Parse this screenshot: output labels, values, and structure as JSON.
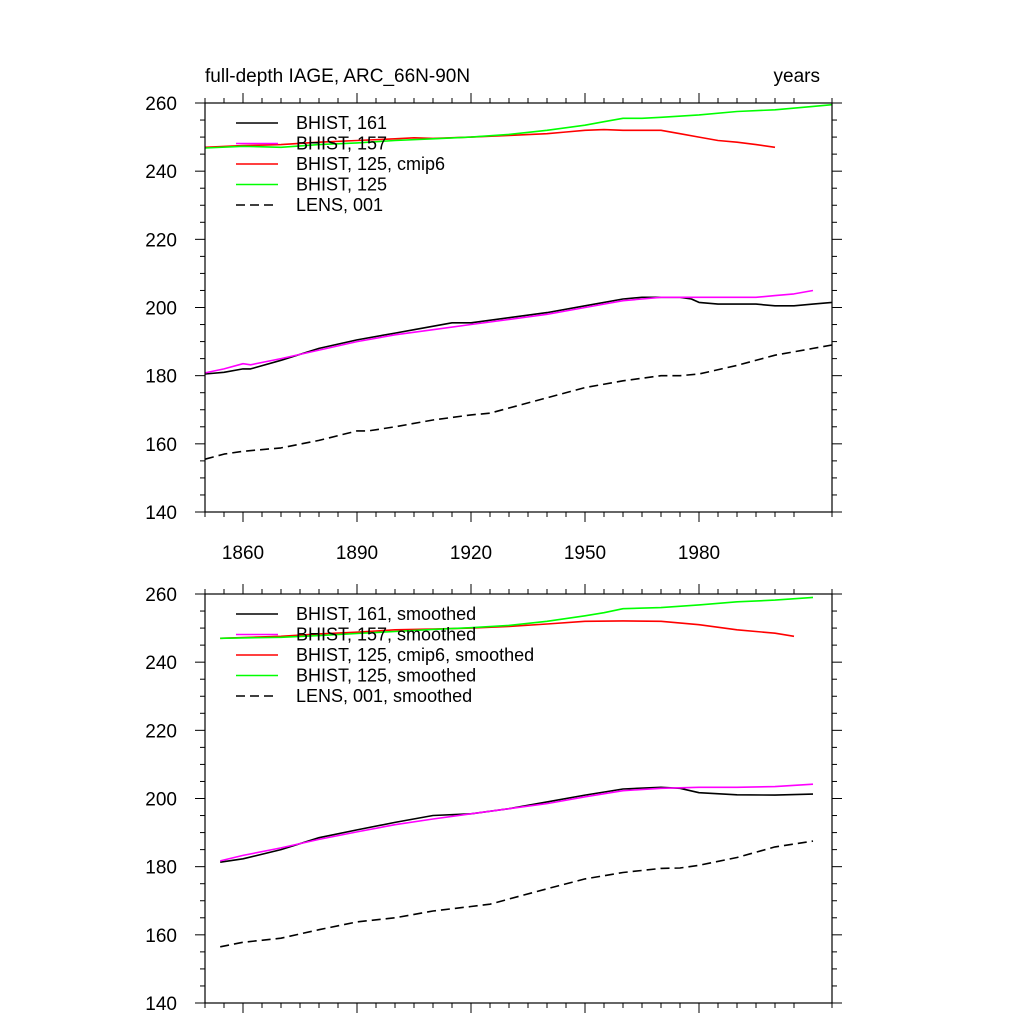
{
  "title_left": "full-depth IAGE, ARC_66N-90N",
  "title_right": "years",
  "chart_data": [
    {
      "type": "line",
      "panel": "top",
      "xlim": [
        1850,
        2015
      ],
      "ylim": [
        140,
        260
      ],
      "x_ticks": [
        1860,
        1890,
        1920,
        1950,
        1980
      ],
      "y_ticks": [
        140,
        160,
        180,
        200,
        220,
        240,
        260
      ],
      "x_tick_labels_shown": true,
      "legend": [
        "BHIST, 161",
        "BHIST, 157",
        "BHIST, 125, cmip6",
        "BHIST, 125",
        "LENS, 001"
      ],
      "legend_position": "top-left",
      "series": [
        {
          "name": "BHIST, 161",
          "color": "#000000",
          "dash": "solid",
          "x": [
            1850,
            1855,
            1860,
            1862,
            1870,
            1880,
            1890,
            1900,
            1905,
            1915,
            1920,
            1930,
            1940,
            1950,
            1960,
            1965,
            1970,
            1975,
            1978,
            1980,
            1985,
            1990,
            1995,
            2000,
            2005,
            2010,
            2015
          ],
          "y": [
            180.5,
            181,
            182,
            182,
            184.5,
            188,
            190.5,
            192.5,
            193.5,
            195.5,
            195.5,
            197,
            198.5,
            200.5,
            202.5,
            203,
            203,
            203,
            202.5,
            201.5,
            201,
            201,
            201,
            200.5,
            200.5,
            201,
            201.5
          ]
        },
        {
          "name": "BHIST, 157",
          "color": "#ff00ff",
          "dash": "solid",
          "x": [
            1850,
            1855,
            1860,
            1862,
            1870,
            1880,
            1890,
            1900,
            1910,
            1920,
            1930,
            1940,
            1950,
            1960,
            1970,
            1980,
            1985,
            1990,
            1995,
            2000,
            2005,
            2010
          ],
          "y": [
            180.8,
            182,
            183.5,
            183.2,
            185,
            187.5,
            190,
            192,
            193.5,
            195,
            196.5,
            198,
            200,
            202,
            203,
            203,
            203,
            203,
            203,
            203.5,
            204,
            205
          ]
        },
        {
          "name": "BHIST, 125, cmip6",
          "color": "#ff0000",
          "dash": "solid",
          "x": [
            1850,
            1860,
            1870,
            1880,
            1890,
            1900,
            1905,
            1910,
            1920,
            1930,
            1940,
            1945,
            1950,
            1955,
            1960,
            1965,
            1970,
            1975,
            1980,
            1985,
            1990,
            1995,
            2000
          ],
          "y": [
            247,
            247.5,
            247.8,
            248.5,
            249,
            249.5,
            249.8,
            249.6,
            250,
            250.5,
            251,
            251.5,
            252,
            252.2,
            252,
            252,
            252,
            251,
            250,
            249,
            248.5,
            247.8,
            247
          ]
        },
        {
          "name": "BHIST, 125",
          "color": "#00ff00",
          "dash": "solid",
          "x": [
            1850,
            1860,
            1870,
            1880,
            1890,
            1900,
            1910,
            1920,
            1930,
            1940,
            1950,
            1955,
            1960,
            1965,
            1970,
            1980,
            1990,
            2000,
            2010,
            2015
          ],
          "y": [
            246.8,
            247.3,
            247,
            247.8,
            248.3,
            249,
            249.5,
            250,
            250.8,
            252,
            253.5,
            254.5,
            255.5,
            255.5,
            255.8,
            256.5,
            257.5,
            258,
            259,
            259.5
          ]
        },
        {
          "name": "LENS, 001",
          "color": "#000000",
          "dash": "dashed",
          "x": [
            1850,
            1855,
            1860,
            1870,
            1880,
            1890,
            1893,
            1900,
            1910,
            1920,
            1925,
            1930,
            1940,
            1950,
            1960,
            1970,
            1975,
            1980,
            1990,
            2000,
            2010,
            2015
          ],
          "y": [
            155.5,
            157,
            157.8,
            158.8,
            161,
            163.8,
            163.8,
            165,
            167,
            168.5,
            169,
            170.5,
            173.5,
            176.5,
            178.5,
            180,
            180,
            180.5,
            183,
            186,
            188,
            189
          ]
        }
      ]
    },
    {
      "type": "line",
      "panel": "bottom",
      "xlim": [
        1850,
        2015
      ],
      "ylim": [
        140,
        260
      ],
      "x_ticks": [
        1860,
        1890,
        1920,
        1950,
        1980
      ],
      "y_ticks": [
        140,
        160,
        180,
        200,
        220,
        240,
        260
      ],
      "x_tick_labels_shown": false,
      "legend": [
        "BHIST, 161, smoothed",
        "BHIST, 157, smoothed",
        "BHIST, 125, cmip6, smoothed",
        "BHIST, 125, smoothed",
        "LENS, 001, smoothed"
      ],
      "legend_position": "top-left",
      "series": [
        {
          "name": "BHIST, 161, smoothed",
          "color": "#000000",
          "dash": "solid",
          "x": [
            1854,
            1860,
            1870,
            1880,
            1890,
            1900,
            1910,
            1920,
            1930,
            1940,
            1950,
            1960,
            1970,
            1975,
            1980,
            1990,
            2000,
            2010
          ],
          "y": [
            181.3,
            182.3,
            185,
            188.5,
            190.8,
            193,
            195,
            195.5,
            197,
            199,
            201,
            202.8,
            203.3,
            203,
            201.7,
            201.1,
            201,
            201.3
          ]
        },
        {
          "name": "BHIST, 157, smoothed",
          "color": "#ff00ff",
          "dash": "solid",
          "x": [
            1854,
            1860,
            1870,
            1880,
            1890,
            1900,
            1910,
            1920,
            1930,
            1940,
            1950,
            1960,
            1970,
            1980,
            1990,
            2000,
            2010
          ],
          "y": [
            181.7,
            183.3,
            185.5,
            188,
            190.2,
            192.3,
            194,
            195.5,
            197,
            198.5,
            200.5,
            202.3,
            203,
            203.3,
            203.3,
            203.5,
            204.2
          ]
        },
        {
          "name": "BHIST, 125, cmip6, smoothed",
          "color": "#ff0000",
          "dash": "solid",
          "x": [
            1854,
            1870,
            1880,
            1890,
            1900,
            1910,
            1920,
            1930,
            1940,
            1950,
            1960,
            1970,
            1980,
            1990,
            2000,
            2005
          ],
          "y": [
            247,
            247.6,
            248.3,
            248.8,
            249.5,
            249.7,
            250,
            250.5,
            251.2,
            252,
            252.1,
            252,
            251,
            249.5,
            248.5,
            247.6
          ]
        },
        {
          "name": "BHIST, 125, smoothed",
          "color": "#00ff00",
          "dash": "solid",
          "x": [
            1854,
            1870,
            1880,
            1890,
            1900,
            1910,
            1920,
            1930,
            1940,
            1950,
            1955,
            1960,
            1970,
            1980,
            1990,
            2000,
            2010
          ],
          "y": [
            247,
            247.3,
            247.8,
            248.4,
            249,
            249.6,
            250.1,
            250.8,
            252,
            253.6,
            254.5,
            255.7,
            256,
            256.8,
            257.7,
            258.2,
            259
          ]
        },
        {
          "name": "LENS, 001, smoothed",
          "color": "#000000",
          "dash": "dashed",
          "x": [
            1854,
            1860,
            1870,
            1880,
            1890,
            1900,
            1910,
            1920,
            1925,
            1930,
            1940,
            1950,
            1960,
            1970,
            1975,
            1980,
            1990,
            2000,
            2010
          ],
          "y": [
            156.5,
            157.8,
            159,
            161.5,
            163.8,
            165,
            167,
            168.3,
            169,
            170.5,
            173.5,
            176.4,
            178.3,
            179.5,
            179.6,
            180.4,
            182.7,
            185.8,
            187.5
          ]
        }
      ]
    }
  ]
}
